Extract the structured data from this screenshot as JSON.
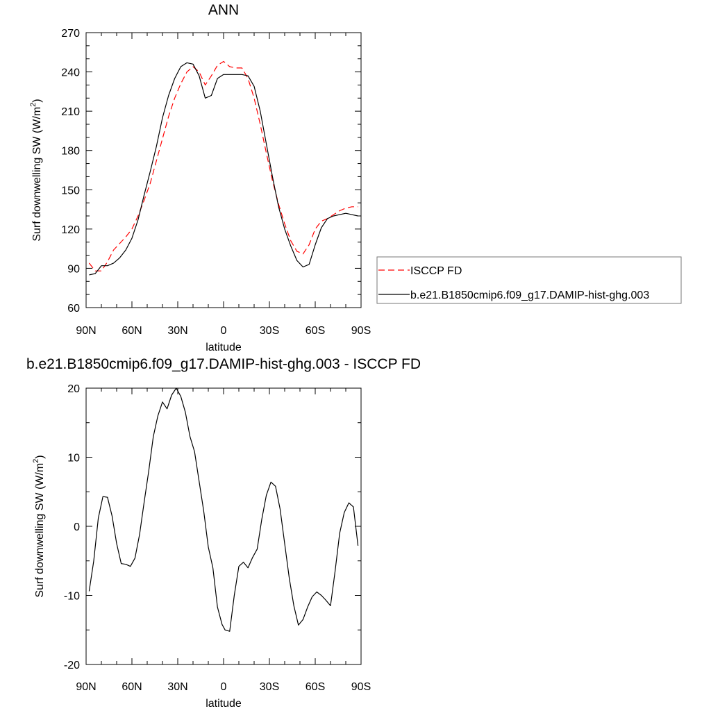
{
  "chart_data": [
    {
      "type": "line",
      "title": "ANN",
      "xlabel": "latitude",
      "ylabel": "Surf downwelling SW (W/m²)",
      "ylabel_main": "Surf downwelling SW (W/m",
      "ylabel_sup": "2",
      "ylabel_close": ")",
      "xlim": [
        90,
        -90
      ],
      "ylim": [
        60,
        270
      ],
      "xticks": [
        90,
        60,
        30,
        0,
        -30,
        -60,
        -90
      ],
      "xticklabels": [
        "90N",
        "60N",
        "30N",
        "0",
        "30S",
        "60S",
        "90S"
      ],
      "yticks": [
        60,
        90,
        120,
        150,
        180,
        210,
        240,
        270
      ],
      "yticklabels": [
        "60",
        "90",
        "120",
        "150",
        "180",
        "210",
        "240",
        "270"
      ],
      "grid": false,
      "legend_position": "right",
      "series": [
        {
          "name": "ISCCP FD",
          "color": "#ff0000",
          "dash": "dashed",
          "x": [
            88,
            84,
            80,
            76,
            72,
            68,
            64,
            60,
            56,
            52,
            48,
            44,
            40,
            36,
            32,
            28,
            24,
            20,
            16,
            12,
            8,
            4,
            0,
            -4,
            -8,
            -12,
            -16,
            -20,
            -24,
            -28,
            -32,
            -36,
            -40,
            -44,
            -48,
            -52,
            -56,
            -60,
            -64,
            -68,
            -72,
            -76,
            -80,
            -84,
            -88
          ],
          "y": [
            94,
            88,
            88,
            95,
            104,
            109,
            114,
            120,
            130,
            142,
            155,
            172,
            189,
            206,
            220,
            231,
            240,
            244,
            240,
            230,
            237,
            245,
            248,
            244,
            243,
            243,
            235,
            220,
            200,
            178,
            157,
            139,
            124,
            111,
            103,
            101,
            108,
            120,
            126,
            128,
            131,
            134,
            136,
            137,
            137
          ]
        },
        {
          "name": "b.e21.B1850cmip6.f09_g17.DAMIP-hist-ghg.003",
          "color": "#000000",
          "dash": "solid",
          "x": [
            88,
            84,
            80,
            76,
            72,
            68,
            64,
            60,
            56,
            52,
            48,
            44,
            40,
            36,
            32,
            28,
            24,
            20,
            16,
            12,
            8,
            4,
            0,
            -4,
            -8,
            -12,
            -16,
            -20,
            -24,
            -28,
            -32,
            -36,
            -40,
            -44,
            -48,
            -52,
            -56,
            -60,
            -64,
            -68,
            -72,
            -76,
            -80,
            -84,
            -88
          ],
          "y": [
            85,
            86,
            92,
            92,
            94,
            98,
            104,
            113,
            127,
            146,
            164,
            183,
            205,
            222,
            235,
            244,
            247,
            246,
            237,
            220,
            222,
            235,
            238,
            238,
            238,
            238,
            237,
            229,
            210,
            185,
            160,
            137,
            120,
            107,
            96,
            91,
            93,
            108,
            121,
            128,
            130,
            131,
            132,
            131,
            130
          ]
        }
      ]
    },
    {
      "type": "line",
      "title": "b.e21.B1850cmip6.f09_g17.DAMIP-hist-ghg.003 - ISCCP FD",
      "xlabel": "latitude",
      "ylabel": "Surf downwelling SW (W/m²)",
      "ylabel_main": "Surf downwelling SW (W/m",
      "ylabel_sup": "2",
      "ylabel_close": ")",
      "xlim": [
        90,
        -90
      ],
      "ylim": [
        -20,
        20
      ],
      "xticks": [
        90,
        60,
        30,
        0,
        -30,
        -60,
        -90
      ],
      "xticklabels": [
        "90N",
        "60N",
        "30N",
        "0",
        "30S",
        "60S",
        "90S"
      ],
      "yticks": [
        -20,
        -10,
        0,
        10,
        20
      ],
      "yticklabels": [
        "-20",
        "-10",
        "0",
        "10",
        "20"
      ],
      "grid": false,
      "series": [
        {
          "color": "#000000",
          "dash": "solid",
          "x": [
            88,
            85,
            82,
            79,
            76,
            73,
            70,
            67,
            64,
            61,
            58,
            55,
            52,
            49,
            46,
            43,
            40,
            37,
            34,
            31,
            28,
            25,
            22,
            19,
            16,
            13,
            10,
            7,
            4,
            1,
            -1,
            -4,
            -7,
            -10,
            -13,
            -16,
            -19,
            -22,
            -25,
            -28,
            -31,
            -34,
            -37,
            -40,
            -43,
            -46,
            -49,
            -52,
            -55,
            -58,
            -61,
            -64,
            -67,
            -70,
            -73,
            -76,
            -79,
            -82,
            -85,
            -88
          ],
          "y": [
            -9.4,
            -5,
            1.2,
            4.3,
            4.2,
            1.5,
            -2.5,
            -5.4,
            -5.5,
            -5.8,
            -4.6,
            -1.2,
            3.5,
            8,
            13,
            16,
            18,
            17,
            19,
            20,
            18.8,
            16.5,
            13,
            10.8,
            6.5,
            2.2,
            -3,
            -6,
            -11.7,
            -14.2,
            -15,
            -15.2,
            -10,
            -5.8,
            -5.2,
            -6,
            -4.5,
            -3.3,
            1,
            4.5,
            6.4,
            5.8,
            2.5,
            -2.5,
            -7.5,
            -11.5,
            -14.3,
            -13.5,
            -11.7,
            -10.2,
            -9.5,
            -10,
            -10.7,
            -11.5,
            -6.5,
            -1,
            2,
            3.4,
            2.8,
            -2.8
          ]
        }
      ]
    }
  ]
}
